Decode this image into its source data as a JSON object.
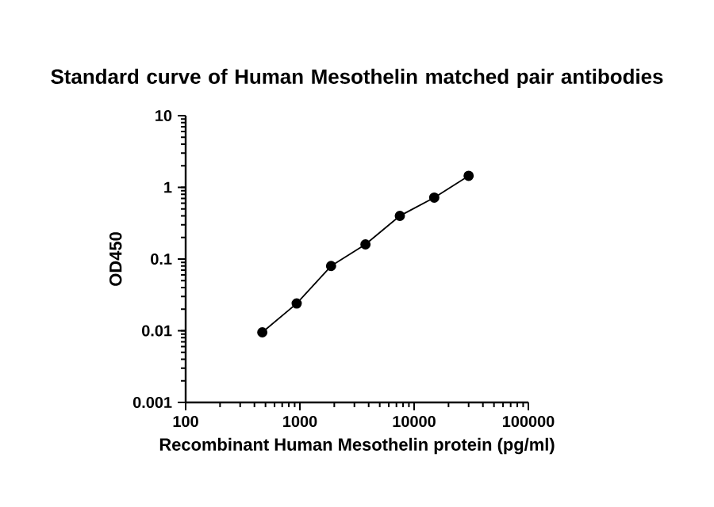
{
  "chart_data": {
    "type": "line",
    "title": "Standard curve of Human Mesothelin matched pair antibodies",
    "xlabel": "Recombinant Human Mesothelin protein (pg/ml)",
    "ylabel": "OD450",
    "x": [
      468.75,
      937.5,
      1875,
      3750,
      7500,
      15000,
      30000
    ],
    "series": [
      {
        "color": "#000000",
        "values": [
          0.0095,
          0.024,
          0.08,
          0.16,
          0.4,
          0.72,
          1.45
        ]
      }
    ],
    "log": "xy",
    "marker": "circle",
    "line_style": "solid",
    "grid": false,
    "xlim": [
      100,
      100000
    ],
    "ylim": [
      0.001,
      10
    ],
    "xticks": [
      100,
      1000,
      10000,
      100000
    ],
    "yticks": [
      0.001,
      0.01,
      0.1,
      1,
      10
    ]
  }
}
